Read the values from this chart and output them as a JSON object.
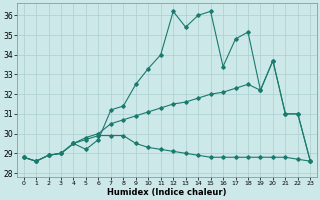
{
  "xlabel": "Humidex (Indice chaleur)",
  "background_color": "#cce8e8",
  "grid_color": "#aacfcf",
  "line_color": "#1a7a6e",
  "xlim": [
    -0.5,
    23.5
  ],
  "ylim": [
    27.8,
    36.6
  ],
  "yticks": [
    28,
    29,
    30,
    31,
    32,
    33,
    34,
    35,
    36
  ],
  "s1": [
    28.8,
    28.6,
    28.9,
    29.0,
    29.5,
    29.2,
    29.7,
    31.2,
    31.4,
    32.5,
    33.3,
    34.0,
    36.2,
    35.4,
    36.0,
    36.2,
    33.4,
    34.8,
    35.15,
    32.2,
    33.7,
    31.0,
    31.0,
    28.6
  ],
  "s2": [
    28.8,
    28.6,
    28.9,
    29.0,
    29.5,
    29.8,
    30.0,
    30.5,
    30.7,
    30.9,
    31.1,
    31.3,
    31.5,
    31.6,
    31.8,
    32.0,
    32.1,
    32.3,
    32.5,
    32.2,
    33.7,
    31.0,
    31.0,
    28.6
  ],
  "s3": [
    28.8,
    28.6,
    28.9,
    29.0,
    29.5,
    29.7,
    29.9,
    29.9,
    29.9,
    29.5,
    29.3,
    29.2,
    29.1,
    29.0,
    28.9,
    28.8,
    28.8,
    28.8,
    28.8,
    28.8,
    28.8,
    28.8,
    28.7,
    28.6
  ],
  "xtick_fontsize": 4.5,
  "ytick_fontsize": 5.5,
  "xlabel_fontsize": 6
}
